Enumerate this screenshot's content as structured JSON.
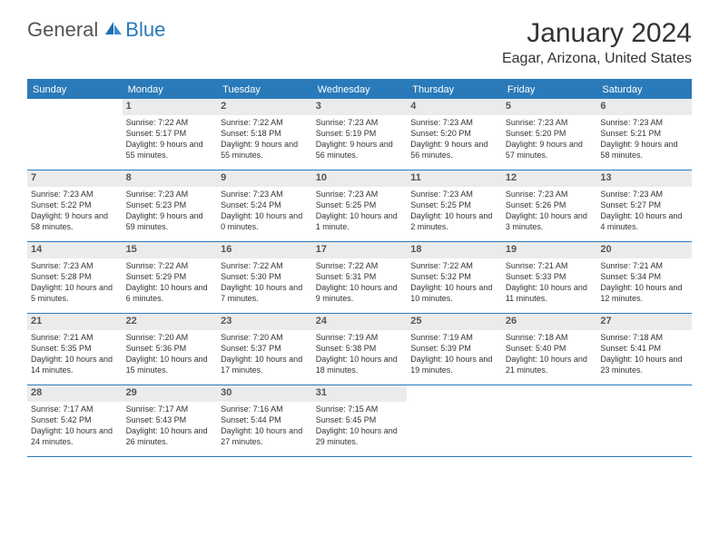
{
  "logo": {
    "general": "General",
    "blue": "Blue"
  },
  "title": "January 2024",
  "location": "Eagar, Arizona, United States",
  "colors": {
    "accent": "#2a7ab9",
    "header_date_bg": "#ebebeb",
    "text": "#333333"
  },
  "daynames": [
    "Sunday",
    "Monday",
    "Tuesday",
    "Wednesday",
    "Thursday",
    "Friday",
    "Saturday"
  ],
  "layout": {
    "start_offset": 1,
    "days_in_month": 31,
    "columns": 7
  },
  "days": [
    {
      "n": 1,
      "sunrise": "7:22 AM",
      "sunset": "5:17 PM",
      "daylight": "9 hours and 55 minutes."
    },
    {
      "n": 2,
      "sunrise": "7:22 AM",
      "sunset": "5:18 PM",
      "daylight": "9 hours and 55 minutes."
    },
    {
      "n": 3,
      "sunrise": "7:23 AM",
      "sunset": "5:19 PM",
      "daylight": "9 hours and 56 minutes."
    },
    {
      "n": 4,
      "sunrise": "7:23 AM",
      "sunset": "5:20 PM",
      "daylight": "9 hours and 56 minutes."
    },
    {
      "n": 5,
      "sunrise": "7:23 AM",
      "sunset": "5:20 PM",
      "daylight": "9 hours and 57 minutes."
    },
    {
      "n": 6,
      "sunrise": "7:23 AM",
      "sunset": "5:21 PM",
      "daylight": "9 hours and 58 minutes."
    },
    {
      "n": 7,
      "sunrise": "7:23 AM",
      "sunset": "5:22 PM",
      "daylight": "9 hours and 58 minutes."
    },
    {
      "n": 8,
      "sunrise": "7:23 AM",
      "sunset": "5:23 PM",
      "daylight": "9 hours and 59 minutes."
    },
    {
      "n": 9,
      "sunrise": "7:23 AM",
      "sunset": "5:24 PM",
      "daylight": "10 hours and 0 minutes."
    },
    {
      "n": 10,
      "sunrise": "7:23 AM",
      "sunset": "5:25 PM",
      "daylight": "10 hours and 1 minute."
    },
    {
      "n": 11,
      "sunrise": "7:23 AM",
      "sunset": "5:25 PM",
      "daylight": "10 hours and 2 minutes."
    },
    {
      "n": 12,
      "sunrise": "7:23 AM",
      "sunset": "5:26 PM",
      "daylight": "10 hours and 3 minutes."
    },
    {
      "n": 13,
      "sunrise": "7:23 AM",
      "sunset": "5:27 PM",
      "daylight": "10 hours and 4 minutes."
    },
    {
      "n": 14,
      "sunrise": "7:23 AM",
      "sunset": "5:28 PM",
      "daylight": "10 hours and 5 minutes."
    },
    {
      "n": 15,
      "sunrise": "7:22 AM",
      "sunset": "5:29 PM",
      "daylight": "10 hours and 6 minutes."
    },
    {
      "n": 16,
      "sunrise": "7:22 AM",
      "sunset": "5:30 PM",
      "daylight": "10 hours and 7 minutes."
    },
    {
      "n": 17,
      "sunrise": "7:22 AM",
      "sunset": "5:31 PM",
      "daylight": "10 hours and 9 minutes."
    },
    {
      "n": 18,
      "sunrise": "7:22 AM",
      "sunset": "5:32 PM",
      "daylight": "10 hours and 10 minutes."
    },
    {
      "n": 19,
      "sunrise": "7:21 AM",
      "sunset": "5:33 PM",
      "daylight": "10 hours and 11 minutes."
    },
    {
      "n": 20,
      "sunrise": "7:21 AM",
      "sunset": "5:34 PM",
      "daylight": "10 hours and 12 minutes."
    },
    {
      "n": 21,
      "sunrise": "7:21 AM",
      "sunset": "5:35 PM",
      "daylight": "10 hours and 14 minutes."
    },
    {
      "n": 22,
      "sunrise": "7:20 AM",
      "sunset": "5:36 PM",
      "daylight": "10 hours and 15 minutes."
    },
    {
      "n": 23,
      "sunrise": "7:20 AM",
      "sunset": "5:37 PM",
      "daylight": "10 hours and 17 minutes."
    },
    {
      "n": 24,
      "sunrise": "7:19 AM",
      "sunset": "5:38 PM",
      "daylight": "10 hours and 18 minutes."
    },
    {
      "n": 25,
      "sunrise": "7:19 AM",
      "sunset": "5:39 PM",
      "daylight": "10 hours and 19 minutes."
    },
    {
      "n": 26,
      "sunrise": "7:18 AM",
      "sunset": "5:40 PM",
      "daylight": "10 hours and 21 minutes."
    },
    {
      "n": 27,
      "sunrise": "7:18 AM",
      "sunset": "5:41 PM",
      "daylight": "10 hours and 23 minutes."
    },
    {
      "n": 28,
      "sunrise": "7:17 AM",
      "sunset": "5:42 PM",
      "daylight": "10 hours and 24 minutes."
    },
    {
      "n": 29,
      "sunrise": "7:17 AM",
      "sunset": "5:43 PM",
      "daylight": "10 hours and 26 minutes."
    },
    {
      "n": 30,
      "sunrise": "7:16 AM",
      "sunset": "5:44 PM",
      "daylight": "10 hours and 27 minutes."
    },
    {
      "n": 31,
      "sunrise": "7:15 AM",
      "sunset": "5:45 PM",
      "daylight": "10 hours and 29 minutes."
    }
  ],
  "labels": {
    "sunrise": "Sunrise:",
    "sunset": "Sunset:",
    "daylight": "Daylight:"
  }
}
